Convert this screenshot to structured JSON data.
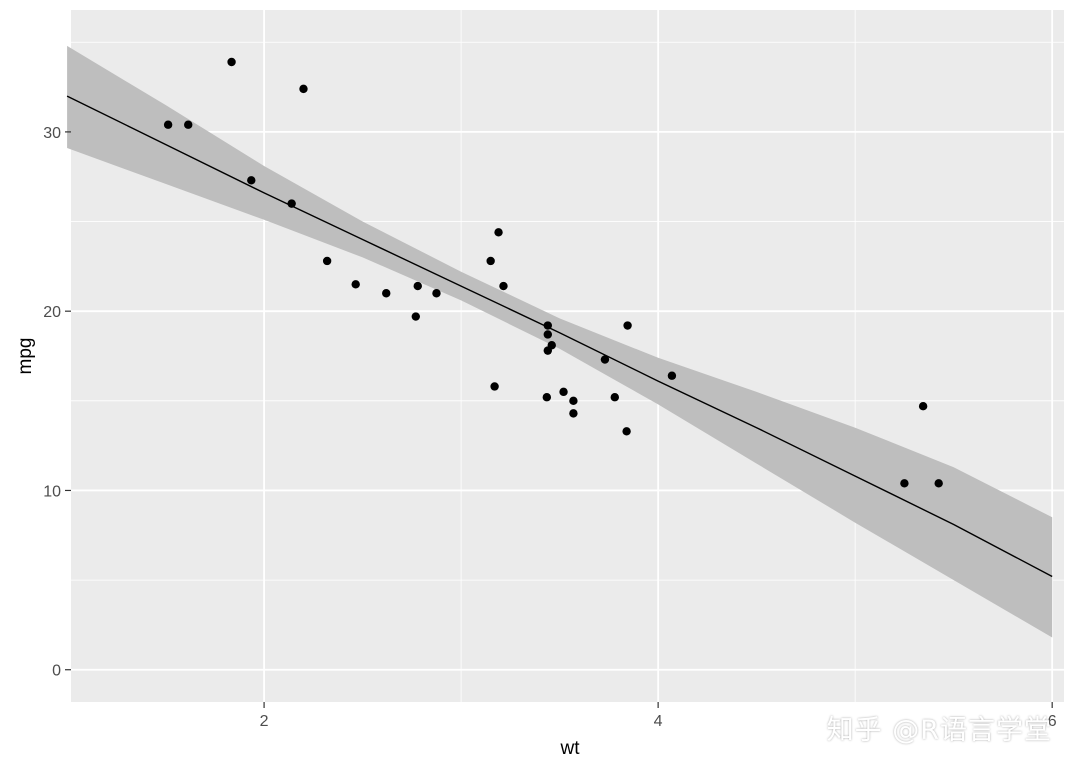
{
  "chart_data": {
    "type": "scatter",
    "title": "",
    "xlabel": "wt",
    "ylabel": "mpg",
    "xlim": [
      1.513,
      5.424
    ],
    "ylim": [
      0,
      34.9
    ],
    "panel_xlim": [
      1.02,
      6.06
    ],
    "panel_ylim": [
      -1.8,
      36.8
    ],
    "x_ticks": [
      2,
      4,
      6
    ],
    "y_ticks": [
      0,
      10,
      20,
      30
    ],
    "grid": true,
    "colors": {
      "panel": "#EBEBEB",
      "grid": "#FFFFFF",
      "ribbon": "#BEBEBE",
      "line": "#000000",
      "point": "#000000"
    },
    "points": [
      {
        "x": 2.62,
        "y": 21.0
      },
      {
        "x": 2.875,
        "y": 21.0
      },
      {
        "x": 2.32,
        "y": 22.8
      },
      {
        "x": 3.215,
        "y": 21.4
      },
      {
        "x": 3.44,
        "y": 18.7
      },
      {
        "x": 3.46,
        "y": 18.1
      },
      {
        "x": 3.57,
        "y": 14.3
      },
      {
        "x": 3.19,
        "y": 24.4
      },
      {
        "x": 3.15,
        "y": 22.8
      },
      {
        "x": 3.44,
        "y": 19.2
      },
      {
        "x": 3.44,
        "y": 17.8
      },
      {
        "x": 4.07,
        "y": 16.4
      },
      {
        "x": 3.73,
        "y": 17.3
      },
      {
        "x": 3.78,
        "y": 15.2
      },
      {
        "x": 5.25,
        "y": 10.4
      },
      {
        "x": 5.424,
        "y": 10.4
      },
      {
        "x": 5.345,
        "y": 14.7
      },
      {
        "x": 2.2,
        "y": 32.4
      },
      {
        "x": 1.615,
        "y": 30.4
      },
      {
        "x": 1.835,
        "y": 33.9
      },
      {
        "x": 2.465,
        "y": 21.5
      },
      {
        "x": 3.52,
        "y": 15.5
      },
      {
        "x": 3.435,
        "y": 15.2
      },
      {
        "x": 3.84,
        "y": 13.3
      },
      {
        "x": 3.845,
        "y": 19.2
      },
      {
        "x": 1.935,
        "y": 27.3
      },
      {
        "x": 2.14,
        "y": 26.0
      },
      {
        "x": 1.513,
        "y": 30.4
      },
      {
        "x": 3.17,
        "y": 15.8
      },
      {
        "x": 2.77,
        "y": 19.7
      },
      {
        "x": 3.57,
        "y": 15.0
      },
      {
        "x": 2.78,
        "y": 21.4
      }
    ],
    "fit": {
      "method": "lm",
      "x": [
        1.0,
        1.5,
        2.0,
        2.5,
        3.0,
        3.5,
        4.0,
        4.5,
        5.0,
        5.5,
        6.0
      ],
      "y": [
        32.0,
        29.3,
        26.6,
        24.0,
        21.4,
        18.8,
        16.1,
        13.5,
        10.8,
        8.1,
        5.2
      ],
      "lower": [
        29.1,
        27.1,
        25.1,
        23.0,
        20.6,
        17.9,
        14.8,
        11.5,
        8.2,
        5.0,
        1.8
      ],
      "upper": [
        34.8,
        31.5,
        28.1,
        25.0,
        22.2,
        19.6,
        17.4,
        15.5,
        13.5,
        11.3,
        8.5
      ]
    }
  },
  "watermark": "知乎 @R语言学堂"
}
